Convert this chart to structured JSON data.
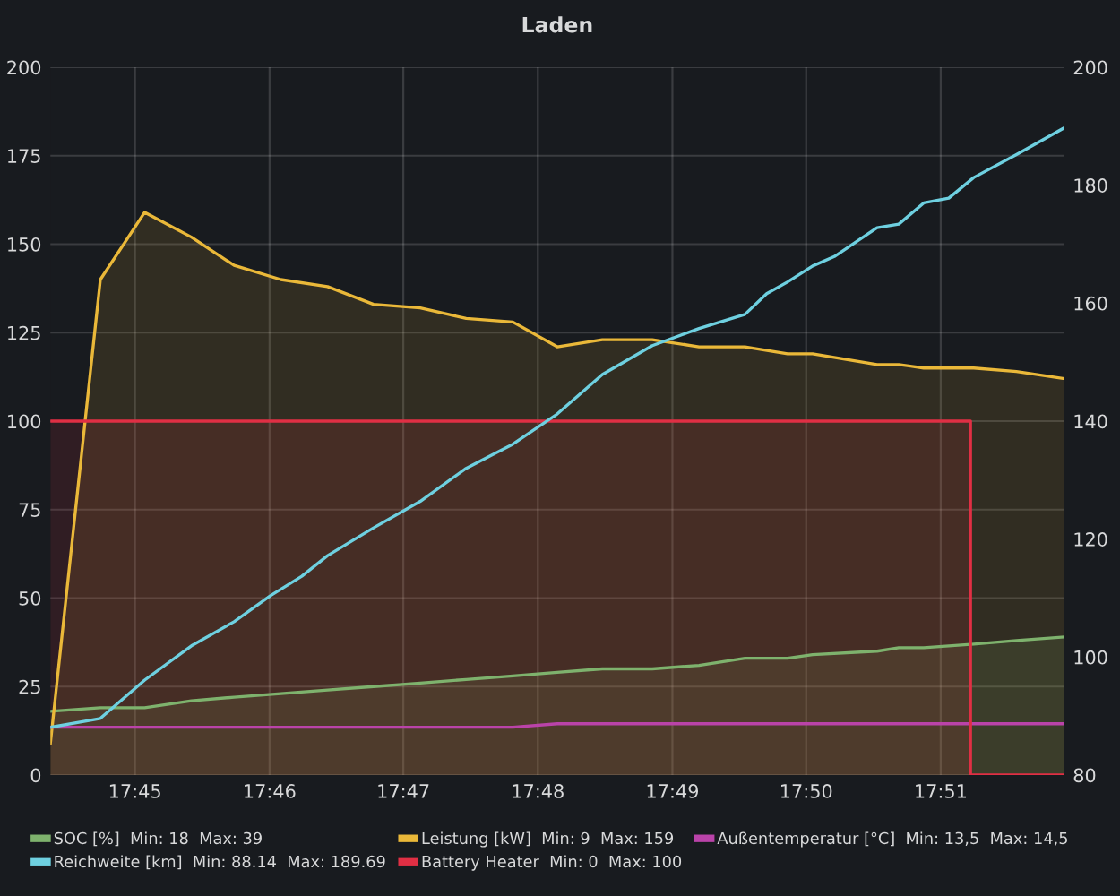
{
  "chart_data": {
    "type": "area",
    "title": "Laden",
    "x": [
      17.7395,
      17.7457,
      17.7512,
      17.757,
      17.7623,
      17.7681,
      17.7739,
      17.7796,
      17.7854,
      17.7911,
      17.7969,
      17.8024,
      17.808,
      17.8142,
      17.82,
      17.8257,
      17.831,
      17.8341,
      17.8421,
      17.8448,
      17.8479,
      17.8541,
      17.8594,
      17.8653
    ],
    "series": [
      {
        "name": "SOC [%]  Min: 18  Max: 39",
        "color": "#7eb26d",
        "values": [
          18,
          19,
          19,
          21,
          22,
          23,
          24,
          25,
          26,
          27,
          28,
          29,
          30,
          30,
          31,
          33,
          33,
          34,
          35,
          36,
          36,
          37,
          38,
          39
        ]
      },
      {
        "name": "Leistung [kW]  Min: 9  Max: 159",
        "color": "#eab839",
        "values": [
          9,
          140,
          159,
          152,
          144,
          140,
          138,
          133,
          132,
          129,
          128,
          121,
          123,
          123,
          121,
          121,
          119,
          119,
          116,
          116,
          115,
          115,
          114,
          112
        ]
      },
      {
        "name": "Außentemperatur [°C]  Min: 13,5  Max: 14,5",
        "color": "#ba43a9",
        "type": "line",
        "values": [
          13.5,
          13.5,
          13.5,
          13.5,
          13.5,
          13.5,
          13.5,
          13.5,
          13.5,
          13.5,
          13.5,
          14.5,
          14.5,
          14.5,
          14.5,
          14.5,
          14.5,
          14.5,
          14.5,
          14.5,
          14.5,
          14.5,
          14.5,
          14.5
        ]
      },
      {
        "name": "Reichweite [km]  Min: 88.14  Max: 189.69",
        "color": "#6ed0e0",
        "type": "line",
        "axis": "y2",
        "x": [
          17.7395,
          17.7457,
          17.7512,
          17.757,
          17.7623,
          17.7668,
          17.7707,
          17.7739,
          17.7796,
          17.7854,
          17.7911,
          17.7969,
          17.8024,
          17.808,
          17.8142,
          17.82,
          17.8257,
          17.8284,
          17.831,
          17.8341,
          17.8368,
          17.8421,
          17.8448,
          17.8479,
          17.851,
          17.8541,
          17.8594,
          17.8653
        ],
        "values": [
          88.1,
          89.6,
          96.1,
          101.9,
          106.0,
          110.4,
          113.7,
          117.2,
          121.9,
          126.4,
          132.0,
          136.1,
          141.2,
          147.9,
          152.8,
          155.7,
          158.1,
          161.6,
          163.6,
          166.3,
          167.9,
          172.8,
          173.4,
          177.0,
          177.8,
          181.3,
          185.2,
          189.7
        ]
      },
      {
        "name": "Battery Heater  Min: 0  Max: 100",
        "color": "#e02f44",
        "x": [
          17.7395,
          17.8537,
          17.8537,
          17.8653
        ],
        "values": [
          100,
          100,
          0,
          0
        ]
      }
    ],
    "xlim": [
      17.7395,
      17.8653
    ],
    "xticks": [
      {
        "value": 17.75,
        "label": "17:45"
      },
      {
        "value": 17.7667,
        "label": "17:46"
      },
      {
        "value": 17.7833,
        "label": "17:47"
      },
      {
        "value": 17.8,
        "label": "17:48"
      },
      {
        "value": 17.8167,
        "label": "17:49"
      },
      {
        "value": 17.8333,
        "label": "17:50"
      },
      {
        "value": 17.85,
        "label": "17:51"
      }
    ],
    "ylim": [
      0,
      200
    ],
    "yticks": [
      0,
      25,
      50,
      75,
      100,
      125,
      150,
      175,
      200
    ],
    "y2lim": [
      80,
      200
    ],
    "y2ticks": [
      80,
      100,
      120,
      140,
      160,
      180,
      200
    ],
    "grid": true,
    "legend": "bottom",
    "marker": "none",
    "line_style": "solid"
  }
}
